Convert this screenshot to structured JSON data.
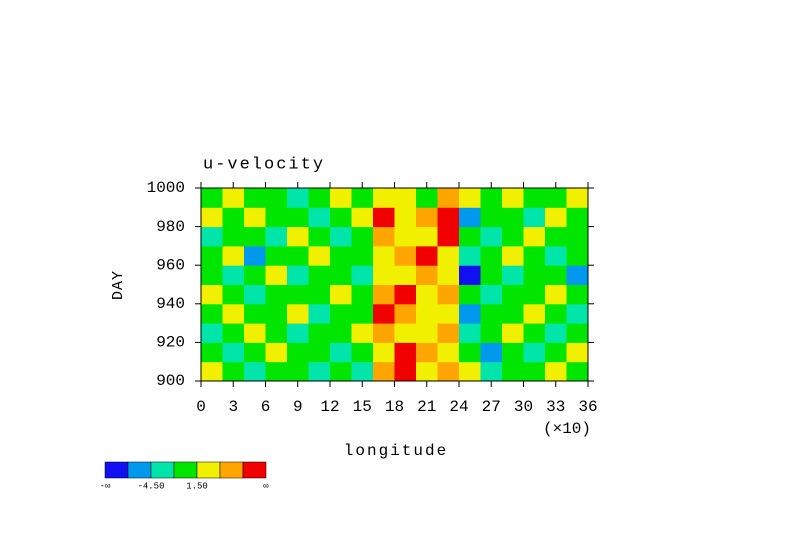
{
  "chart_data": {
    "type": "heatmap",
    "title": "u-velocity",
    "xlabel": "longitude",
    "ylabel": "DAY",
    "x_multiplier": "(×10)",
    "x": [
      1,
      3,
      5,
      7,
      9,
      11,
      13,
      15,
      17,
      19,
      21,
      23,
      25,
      27,
      29,
      31,
      33,
      35
    ],
    "y": [
      905,
      915,
      925,
      935,
      945,
      955,
      965,
      975,
      985,
      995
    ],
    "z": [
      [
        3,
        0,
        -2,
        0,
        0,
        -2,
        0,
        -2,
        6,
        9,
        3,
        6,
        3,
        -2,
        0,
        0,
        3,
        0
      ],
      [
        0,
        -2,
        0,
        3,
        0,
        0,
        -2,
        0,
        3,
        9,
        6,
        3,
        0,
        -5,
        0,
        -2,
        0,
        3
      ],
      [
        -2,
        0,
        3,
        0,
        -2,
        0,
        0,
        3,
        6,
        3,
        3,
        6,
        -2,
        0,
        3,
        0,
        -2,
        0
      ],
      [
        0,
        3,
        0,
        0,
        3,
        -2,
        0,
        0,
        9,
        6,
        3,
        3,
        -5,
        0,
        0,
        3,
        0,
        -2
      ],
      [
        3,
        0,
        -2,
        0,
        0,
        0,
        3,
        0,
        6,
        9,
        3,
        6,
        0,
        -2,
        0,
        0,
        3,
        0
      ],
      [
        0,
        -2,
        0,
        3,
        -2,
        0,
        0,
        -2,
        3,
        3,
        6,
        3,
        -8,
        0,
        -2,
        0,
        0,
        -5
      ],
      [
        0,
        3,
        -5,
        0,
        0,
        3,
        0,
        0,
        3,
        6,
        9,
        3,
        -2,
        0,
        3,
        0,
        -2,
        0
      ],
      [
        -2,
        0,
        0,
        -2,
        3,
        0,
        -2,
        0,
        6,
        3,
        3,
        9,
        0,
        -2,
        0,
        3,
        0,
        0
      ],
      [
        3,
        0,
        3,
        0,
        0,
        -2,
        0,
        3,
        9,
        3,
        6,
        9,
        -5,
        0,
        0,
        -2,
        3,
        0
      ],
      [
        0,
        3,
        0,
        0,
        -2,
        0,
        3,
        0,
        3,
        3,
        0,
        6,
        3,
        0,
        3,
        0,
        0,
        3
      ]
    ],
    "xlim": [
      0,
      36
    ],
    "xticks": [
      0,
      3,
      6,
      9,
      12,
      15,
      18,
      21,
      24,
      27,
      30,
      33,
      36
    ],
    "ylim": [
      900,
      1000
    ],
    "yticks": [
      900,
      920,
      940,
      960,
      980,
      1000
    ],
    "colorbar": {
      "colors": [
        "#1010f0",
        "#0099ee",
        "#00e6aa",
        "#00e600",
        "#f0f000",
        "#ffa500",
        "#f00000"
      ],
      "ends": [
        "-∞",
        "∞"
      ],
      "labels": [
        {
          "value": -4.5,
          "label": "-4.50"
        },
        {
          "value": 1.5,
          "label": "1.50"
        }
      ]
    }
  }
}
